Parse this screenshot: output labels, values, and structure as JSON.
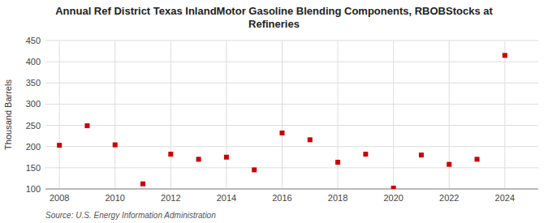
{
  "chart_data": {
    "type": "scatter",
    "title": "Annual Ref District Texas InlandMotor Gasoline Blending Components, RBOBStocks at\nRefineries",
    "y_label": "Thousand Barrels",
    "source": "Source: U.S. Energy Information Administration",
    "x": [
      2008,
      2009,
      2010,
      2011,
      2012,
      2013,
      2014,
      2015,
      2016,
      2017,
      2018,
      2019,
      2020,
      2021,
      2022,
      2023,
      2024
    ],
    "values": [
      203,
      249,
      204,
      112,
      182,
      170,
      175,
      145,
      232,
      216,
      163,
      182,
      102,
      180,
      158,
      170,
      415
    ],
    "color": "#cc0000",
    "marker": "square",
    "xlim": [
      2007.5,
      2025.2
    ],
    "ylim": [
      100,
      450
    ],
    "yticks": [
      100,
      150,
      200,
      250,
      300,
      350,
      400,
      450
    ],
    "xticks": [
      2008,
      2010,
      2012,
      2014,
      2016,
      2018,
      2020,
      2022,
      2024
    ],
    "grid": true
  }
}
